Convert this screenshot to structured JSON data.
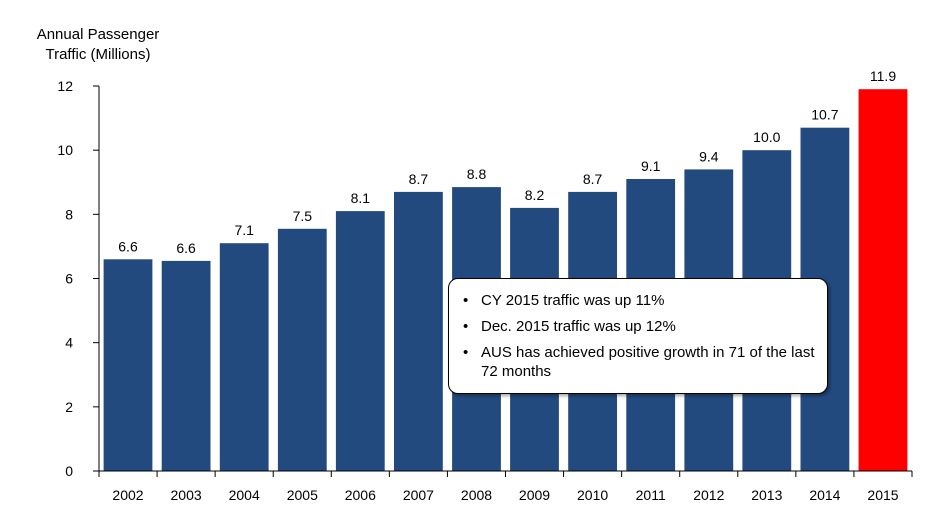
{
  "chart_data": {
    "type": "bar",
    "ylabel_lines": [
      "Annual Passenger",
      "Traffic (Millions)"
    ],
    "categories": [
      "2002",
      "2003",
      "2004",
      "2005",
      "2006",
      "2007",
      "2008",
      "2009",
      "2010",
      "2011",
      "2012",
      "2013",
      "2014",
      "2015"
    ],
    "values": [
      6.6,
      6.55,
      7.1,
      7.55,
      8.1,
      8.7,
      8.85,
      8.2,
      8.7,
      9.1,
      9.4,
      10.0,
      10.7,
      11.9
    ],
    "data_labels": [
      "6.6",
      "6.6",
      "7.1",
      "7.5",
      "8.1",
      "8.7",
      "8.8",
      "8.2",
      "8.7",
      "9.1",
      "9.4",
      "10.0",
      "10.7",
      "11.9"
    ],
    "ylim": [
      0,
      12
    ],
    "yticks": [
      0,
      2,
      4,
      6,
      8,
      10,
      12
    ],
    "grid": false,
    "colors": {
      "default": "#234a7f",
      "highlight": "#ff0000"
    },
    "highlight_index": 13
  },
  "notes": [
    "CY 2015 traffic was up 11%",
    "Dec. 2015 traffic was up 12%",
    "AUS has achieved positive growth in 71 of the last 72 months"
  ],
  "bullet": "•"
}
